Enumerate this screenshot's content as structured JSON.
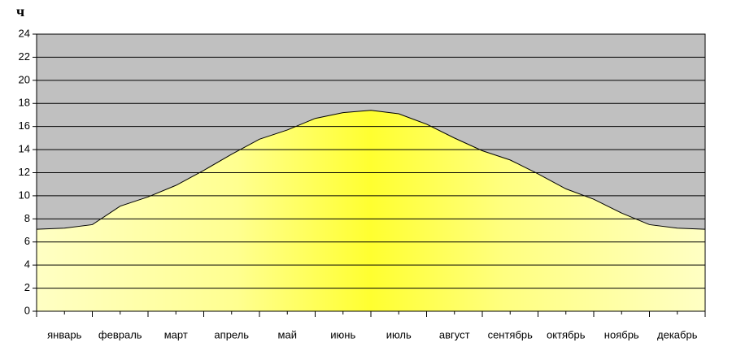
{
  "chart_data": {
    "type": "area",
    "y_label": "ч",
    "categories": [
      "январь",
      "февраль",
      "март",
      "апрель",
      "май",
      "июнь",
      "июль",
      "август",
      "сентябрь",
      "октябрь",
      "ноябрь",
      "декабрь"
    ],
    "x": [
      0,
      0.5,
      1,
      1.5,
      2,
      2.5,
      3,
      3.5,
      4,
      4.5,
      5,
      5.5,
      6,
      6.5,
      7,
      7.5,
      8,
      8.5,
      9,
      9.5,
      10,
      10.5,
      11,
      11.5,
      12
    ],
    "values": [
      7.1,
      7.2,
      7.5,
      9.1,
      9.9,
      10.9,
      12.2,
      13.6,
      14.9,
      15.7,
      16.7,
      17.2,
      17.4,
      17.1,
      16.2,
      15.0,
      13.9,
      13.1,
      11.9,
      10.6,
      9.7,
      8.5,
      7.5,
      7.2,
      7.1
    ],
    "xlim": [
      0,
      12
    ],
    "ylim": [
      0,
      24
    ],
    "yticks": [
      0,
      2,
      4,
      6,
      8,
      10,
      12,
      14,
      16,
      18,
      20,
      22,
      24
    ],
    "grid": true,
    "background": "#c0c0c0",
    "line_color": "#000000"
  }
}
